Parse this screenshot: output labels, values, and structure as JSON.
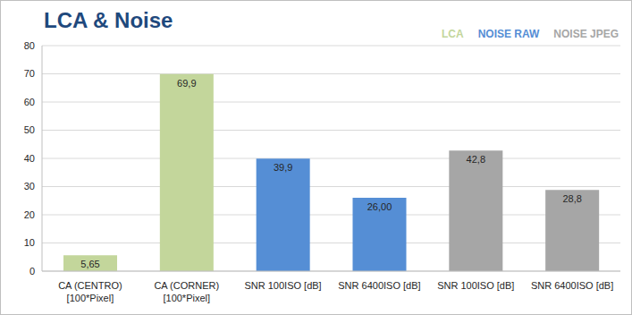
{
  "chart_data": {
    "type": "bar",
    "title": "LCA & Noise",
    "categories": [
      "CA (CENTRO)\n[100*Pixel]",
      "CA (CORNER)\n[100*Pixel]",
      "SNR 100ISO [dB]",
      "SNR 6400ISO [dB]",
      "SNR 100ISO [dB]",
      "SNR 6400ISO [dB]"
    ],
    "values": [
      5.65,
      69.9,
      39.9,
      26.0,
      42.8,
      28.8
    ],
    "value_labels": [
      "5,65",
      "69,9",
      "39,9",
      "26,00",
      "42,8",
      "28,8"
    ],
    "colors": [
      "#c3d69b",
      "#c3d69b",
      "#558ed5",
      "#558ed5",
      "#a6a6a6",
      "#a6a6a6"
    ],
    "ylim": [
      0,
      80
    ],
    "yticks": [
      0,
      10,
      20,
      30,
      40,
      50,
      60,
      70,
      80
    ],
    "grid": true,
    "data_labels": true,
    "annotations": [
      {
        "text": "LCA",
        "color": "#c3d69b"
      },
      {
        "text": "NOISE RAW",
        "color": "#558ed5"
      },
      {
        "text": "NOISE JPEG",
        "color": "#a6a6a6"
      }
    ]
  }
}
